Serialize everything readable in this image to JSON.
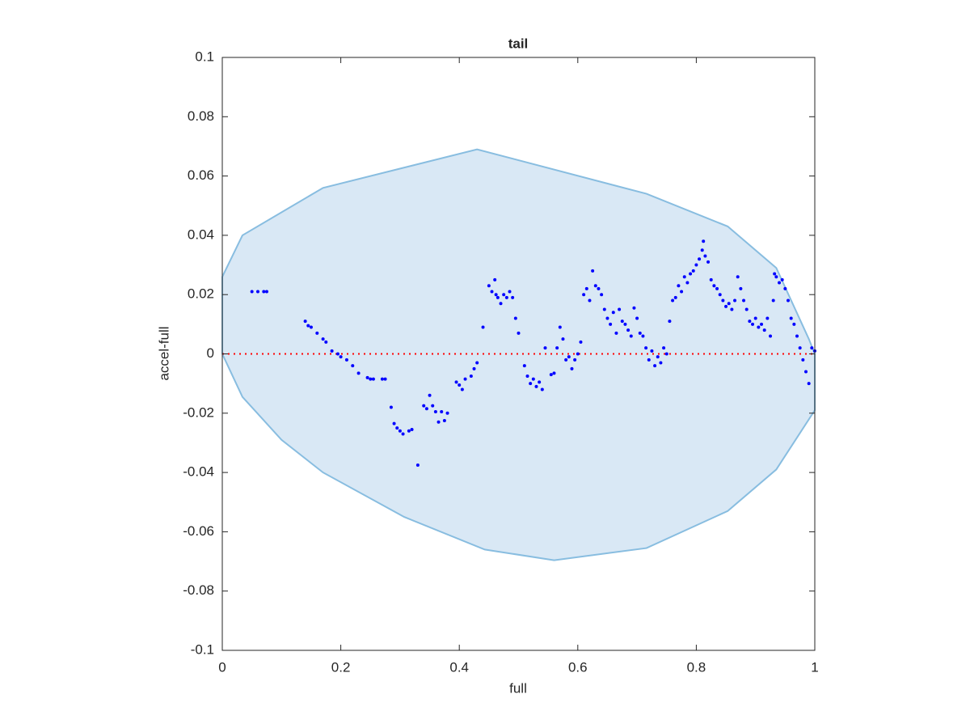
{
  "chart_data": {
    "type": "scatter",
    "title": "tail",
    "xlabel": "full",
    "ylabel": "accel-full",
    "xlim": [
      0,
      1
    ],
    "ylim": [
      -0.1,
      0.1
    ],
    "xticks": [
      0,
      0.2,
      0.4,
      0.6,
      0.8,
      1
    ],
    "yticks": [
      -0.1,
      -0.08,
      -0.06,
      -0.04,
      -0.02,
      0,
      0.02,
      0.04,
      0.06,
      0.08,
      0.1
    ],
    "grid": false,
    "region": {
      "color": "#d9e8f5",
      "edge_color": "#88bde0",
      "x": [
        0,
        0.034,
        0.17,
        0.43,
        0.716,
        0.853,
        0.935,
        0.99,
        1,
        1,
        0.935,
        0.853,
        0.716,
        0.56,
        0.443,
        0.307,
        0.17,
        0.1,
        0.034,
        0,
        0
      ],
      "y": [
        0.026,
        0.04,
        0.056,
        0.069,
        0.054,
        0.043,
        0.029,
        0.005,
        0,
        -0.019,
        -0.039,
        -0.053,
        -0.0655,
        -0.0696,
        -0.066,
        -0.055,
        -0.04,
        -0.029,
        -0.0145,
        0,
        0.026
      ]
    },
    "reference_line": {
      "y": 0,
      "color": "#ff0000"
    },
    "series": [
      {
        "color": "#0000ff",
        "x": [
          0.05,
          0.06,
          0.07,
          0.075,
          0.14,
          0.145,
          0.15,
          0.16,
          0.17,
          0.175,
          0.185,
          0.195,
          0.2,
          0.21,
          0.22,
          0.23,
          0.245,
          0.25,
          0.255,
          0.27,
          0.275,
          0.285,
          0.29,
          0.295,
          0.3,
          0.305,
          0.315,
          0.32,
          0.33,
          0.34,
          0.345,
          0.35,
          0.355,
          0.36,
          0.365,
          0.37,
          0.375,
          0.38,
          0.395,
          0.4,
          0.405,
          0.41,
          0.42,
          0.425,
          0.43,
          0.44,
          0.45,
          0.455,
          0.46,
          0.462,
          0.465,
          0.47,
          0.475,
          0.48,
          0.485,
          0.49,
          0.495,
          0.5,
          0.51,
          0.515,
          0.52,
          0.525,
          0.53,
          0.535,
          0.54,
          0.545,
          0.555,
          0.56,
          0.565,
          0.57,
          0.575,
          0.58,
          0.585,
          0.59,
          0.595,
          0.6,
          0.605,
          0.61,
          0.615,
          0.62,
          0.625,
          0.63,
          0.635,
          0.64,
          0.645,
          0.65,
          0.655,
          0.66,
          0.665,
          0.67,
          0.675,
          0.68,
          0.685,
          0.69,
          0.695,
          0.7,
          0.705,
          0.71,
          0.715,
          0.72,
          0.725,
          0.73,
          0.735,
          0.74,
          0.745,
          0.75,
          0.755,
          0.76,
          0.765,
          0.77,
          0.775,
          0.78,
          0.785,
          0.79,
          0.795,
          0.8,
          0.805,
          0.81,
          0.812,
          0.815,
          0.82,
          0.825,
          0.83,
          0.835,
          0.84,
          0.845,
          0.85,
          0.855,
          0.86,
          0.865,
          0.87,
          0.875,
          0.88,
          0.885,
          0.89,
          0.895,
          0.9,
          0.905,
          0.91,
          0.915,
          0.92,
          0.925,
          0.93,
          0.932,
          0.935,
          0.94,
          0.945,
          0.95,
          0.955,
          0.96,
          0.965,
          0.97,
          0.975,
          0.98,
          0.985,
          0.99,
          0.995,
          1.0
        ],
        "y": [
          0.021,
          0.021,
          0.021,
          0.021,
          0.011,
          0.0095,
          0.009,
          0.007,
          0.005,
          0.004,
          0.001,
          0,
          -0.001,
          -0.002,
          -0.004,
          -0.0065,
          -0.008,
          -0.0085,
          -0.0085,
          -0.0085,
          -0.0085,
          -0.018,
          -0.0235,
          -0.025,
          -0.026,
          -0.027,
          -0.026,
          -0.0255,
          -0.0375,
          -0.0175,
          -0.0185,
          -0.014,
          -0.0175,
          -0.0195,
          -0.023,
          -0.0195,
          -0.0225,
          -0.02,
          -0.0095,
          -0.0105,
          -0.012,
          -0.0085,
          -0.0075,
          -0.005,
          -0.003,
          0.009,
          0.023,
          0.021,
          0.025,
          0.02,
          0.019,
          0.017,
          0.02,
          0.019,
          0.021,
          0.019,
          0.012,
          0.007,
          -0.004,
          -0.0075,
          -0.01,
          -0.0085,
          -0.011,
          -0.0095,
          -0.012,
          0.002,
          -0.007,
          -0.0065,
          0.002,
          0.009,
          0.005,
          -0.002,
          -0.001,
          -0.005,
          -0.002,
          0,
          0.004,
          0.02,
          0.022,
          0.018,
          0.028,
          0.023,
          0.022,
          0.02,
          0.015,
          0.012,
          0.01,
          0.014,
          0.007,
          0.015,
          0.011,
          0.01,
          0.008,
          0.006,
          0.0155,
          0.012,
          0.007,
          0.006,
          0.002,
          -0.002,
          0.001,
          -0.004,
          -0.001,
          -0.003,
          0.002,
          0,
          0.011,
          0.018,
          0.019,
          0.023,
          0.021,
          0.026,
          0.024,
          0.027,
          0.028,
          0.03,
          0.032,
          0.035,
          0.038,
          0.033,
          0.031,
          0.025,
          0.023,
          0.022,
          0.02,
          0.018,
          0.016,
          0.017,
          0.015,
          0.018,
          0.026,
          0.022,
          0.018,
          0.015,
          0.011,
          0.01,
          0.012,
          0.009,
          0.01,
          0.008,
          0.012,
          0.006,
          0.018,
          0.027,
          0.026,
          0.024,
          0.025,
          0.022,
          0.018,
          0.012,
          0.01,
          0.006,
          0.002,
          -0.002,
          -0.006,
          -0.01,
          0.002,
          0.001
        ]
      }
    ]
  }
}
